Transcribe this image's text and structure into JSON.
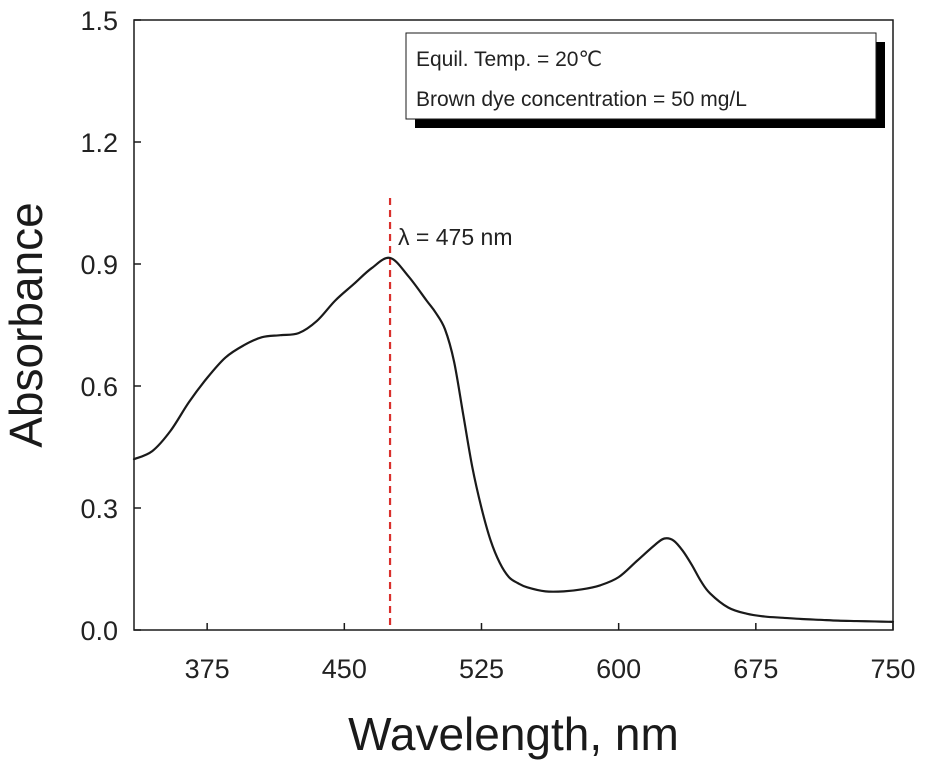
{
  "chart_data": {
    "type": "line",
    "xlabel": "Wavelength, nm",
    "ylabel": "Absorbance",
    "xlim": [
      335,
      750
    ],
    "ylim": [
      0,
      1.5
    ],
    "x_ticks": [
      375,
      450,
      525,
      600,
      675,
      750
    ],
    "y_ticks": [
      0.0,
      0.3,
      0.6,
      0.9,
      1.2,
      1.5
    ],
    "x_tick_labels": [
      "375",
      "450",
      "525",
      "600",
      "675",
      "750"
    ],
    "y_tick_labels": [
      "0.0",
      "0.3",
      "0.6",
      "0.9",
      "1.2",
      "1.5"
    ],
    "grid": false,
    "legend": {
      "placement": "top-right",
      "lines": [
        "Equil. Temp. = 20℃",
        "Brown dye concentration = 50 mg/L"
      ]
    },
    "annotation": {
      "text": "λ = 475 nm",
      "x": 475,
      "line_style": "dashed",
      "line_color": "#d9302c"
    },
    "series": [
      {
        "color": "#1a1a1a",
        "x": [
          335,
          345,
          355,
          365,
          375,
          385,
          395,
          405,
          415,
          425,
          435,
          445,
          455,
          465,
          475,
          485,
          495,
          500,
          505,
          510,
          515,
          520,
          525,
          530,
          535,
          540,
          545,
          550,
          560,
          570,
          580,
          590,
          600,
          610,
          620,
          625,
          630,
          635,
          640,
          645,
          650,
          660,
          670,
          680,
          690,
          700,
          710,
          720,
          730,
          740,
          750
        ],
        "y": [
          0.42,
          0.44,
          0.49,
          0.56,
          0.62,
          0.67,
          0.7,
          0.72,
          0.725,
          0.73,
          0.76,
          0.81,
          0.85,
          0.89,
          0.915,
          0.87,
          0.81,
          0.78,
          0.74,
          0.66,
          0.53,
          0.4,
          0.3,
          0.22,
          0.165,
          0.13,
          0.115,
          0.105,
          0.095,
          0.095,
          0.1,
          0.11,
          0.13,
          0.17,
          0.21,
          0.225,
          0.22,
          0.195,
          0.16,
          0.12,
          0.09,
          0.055,
          0.04,
          0.033,
          0.03,
          0.027,
          0.025,
          0.023,
          0.022,
          0.021,
          0.02
        ]
      }
    ]
  }
}
